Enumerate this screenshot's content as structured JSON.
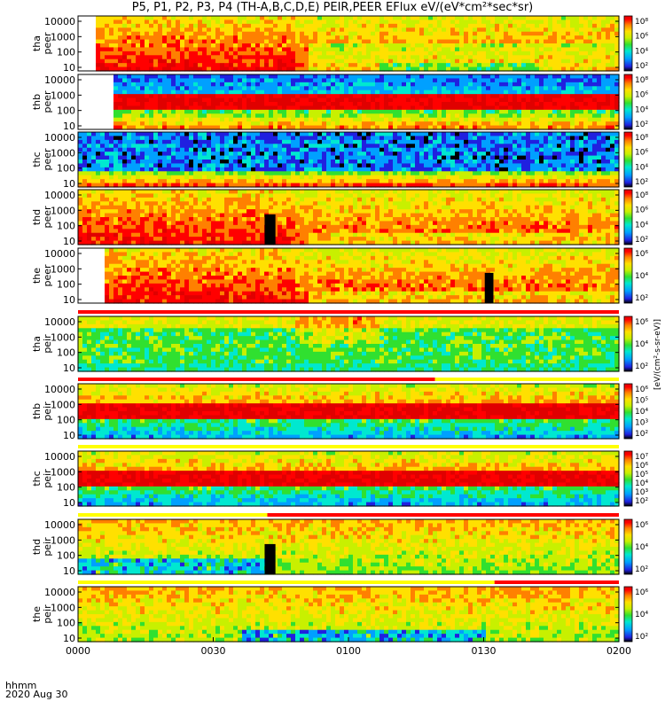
{
  "title": "P5, P1, P2, P3, P4 (TH-A,B,C,D,E) PEIR,PEER EFlux eV/(eV*cm²*sec*sr)",
  "footer": {
    "time_label": "hhmm",
    "date_label": "2020 Aug 30"
  },
  "chart_data": {
    "type": "heatmap",
    "x_axis": {
      "label": "hhmm",
      "range": [
        "0000",
        "0200"
      ],
      "ticks": [
        "0000",
        "0030",
        "0100",
        "0130",
        "0200"
      ]
    },
    "y_ticks": [
      "10",
      "100",
      "1000",
      "10000"
    ],
    "colorbar_label": "[eV/(cm²-s-sr-eV)]",
    "colorbar_palette": [
      "#000000",
      "#2020e0",
      "#00a0ff",
      "#00e8d0",
      "#30e030",
      "#c8f000",
      "#ffe000",
      "#ff8000",
      "#ff0000",
      "#e00000"
    ],
    "panels": [
      {
        "probe": "tha",
        "species": "peer",
        "cb_ticks": [
          "10²",
          "10⁴",
          "10⁶",
          "10⁸"
        ],
        "start": 0.03,
        "base": [
          [
            "0",
            0.9
          ],
          [
            "0.2",
            0.85
          ],
          [
            "0.5",
            0.82
          ]
        ],
        "top_bar": "none",
        "blackout": []
      },
      {
        "probe": "thb",
        "species": "peer",
        "cb_ticks": [
          "10²",
          "10⁴",
          "10⁶",
          "10⁸"
        ],
        "start": 0.06,
        "top_bar": "none",
        "blackout": []
      },
      {
        "probe": "thc",
        "species": "peer",
        "cb_ticks": [
          "10²",
          "10⁴",
          "10⁶",
          "10⁸"
        ],
        "start": 0.0,
        "top_bar": "none",
        "blackout": []
      },
      {
        "probe": "thd",
        "species": "peer",
        "cb_ticks": [
          "10²",
          "10⁴",
          "10⁶",
          "10⁸"
        ],
        "start": 0.0,
        "top_bar": "none",
        "blackout": [
          [
            0.345,
            0.365
          ]
        ]
      },
      {
        "probe": "the",
        "species": "peer",
        "cb_ticks": [
          "10²",
          "10⁴",
          "10⁶"
        ],
        "start": 0.045,
        "top_bar": "none",
        "blackout": [
          [
            0.752,
            0.768
          ]
        ]
      },
      {
        "probe": "tha",
        "species": "peir",
        "cb_ticks": [
          "10²",
          "10⁴",
          "10⁶"
        ],
        "start": 0.0,
        "top_bar": "red",
        "blackout": []
      },
      {
        "probe": "thb",
        "species": "peir",
        "cb_ticks": [
          "10²",
          "10³",
          "10⁴",
          "10⁵",
          "10⁶"
        ],
        "start": 0.0,
        "top_bar": "red-yellow",
        "blackout": []
      },
      {
        "probe": "thc",
        "species": "peir",
        "cb_ticks": [
          "10²",
          "10³",
          "10⁴",
          "10⁵",
          "10⁶",
          "10⁷"
        ],
        "start": 0.0,
        "top_bar": "yellow",
        "blackout": []
      },
      {
        "probe": "thd",
        "species": "peir",
        "cb_ticks": [
          "10²",
          "10⁴",
          "10⁶"
        ],
        "start": 0.0,
        "top_bar": "yellow-red",
        "blackout": [
          [
            0.345,
            0.365
          ]
        ]
      },
      {
        "probe": "the",
        "species": "peir",
        "cb_ticks": [
          "10²",
          "10⁴",
          "10⁶"
        ],
        "start": 0.0,
        "top_bar": "yellow-red2",
        "blackout": []
      }
    ]
  }
}
